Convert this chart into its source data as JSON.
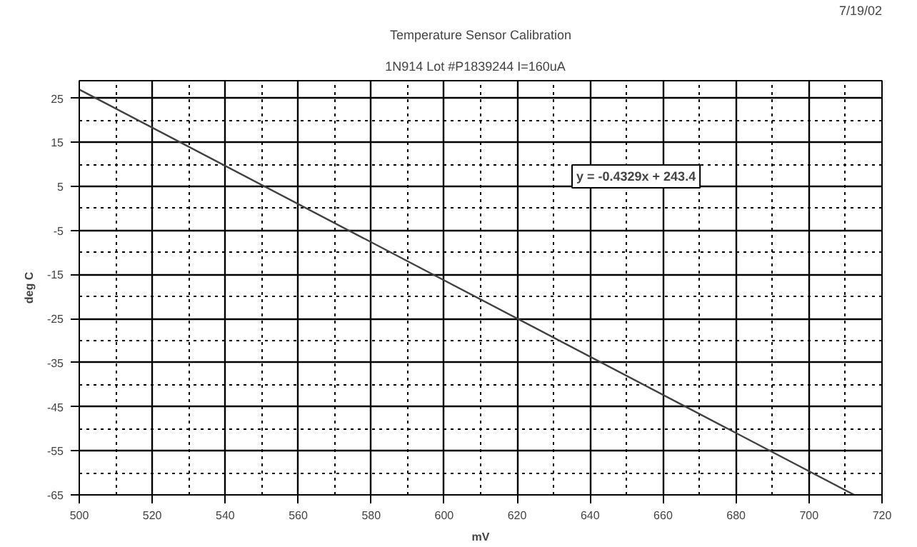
{
  "chart_data": {
    "type": "line",
    "title": "Temperature Sensor Calibration",
    "subtitle": "1N914 Lot #P1839244    I=160uA",
    "xlabel": "mV",
    "ylabel": "deg C",
    "annotations": [
      "7/19/02",
      "y = -0.4329x + 243.4"
    ],
    "x": [
      500,
      712.4
    ],
    "series": [
      {
        "color": "#404040",
        "values": [
          27.0,
          -65
        ]
      }
    ],
    "xlim": [
      500,
      720
    ],
    "ylim": [
      -65,
      29
    ],
    "xticks": [
      500,
      {
        "value": 510,
        "label": null
      },
      520,
      {
        "value": 530,
        "label": null
      },
      540,
      {
        "value": 550,
        "label": null
      },
      560,
      {
        "value": 570,
        "label": null
      },
      580,
      {
        "value": 590,
        "label": null
      },
      600,
      {
        "value": 610,
        "label": null
      },
      620,
      {
        "value": 630,
        "label": null
      },
      640,
      {
        "value": 650,
        "label": null
      },
      660,
      {
        "value": 670,
        "label": null
      },
      680,
      {
        "value": 690,
        "label": null
      },
      700,
      {
        "value": 710,
        "label": null
      },
      720
    ],
    "yticks": [
      -65,
      {
        "value": -60,
        "label": null
      },
      -55,
      {
        "value": -50,
        "label": null
      },
      -45,
      {
        "value": -40,
        "label": null
      },
      -35,
      {
        "value": -30,
        "label": null
      },
      -25,
      {
        "value": -20,
        "label": null
      },
      -15,
      {
        "value": -10,
        "label": null
      },
      -5,
      {
        "value": 0,
        "label": null
      },
      5,
      {
        "value": 10,
        "label": null
      },
      15,
      {
        "value": 20,
        "label": null
      },
      25
    ],
    "grid": true,
    "marker": "none",
    "line_style": "solid"
  }
}
